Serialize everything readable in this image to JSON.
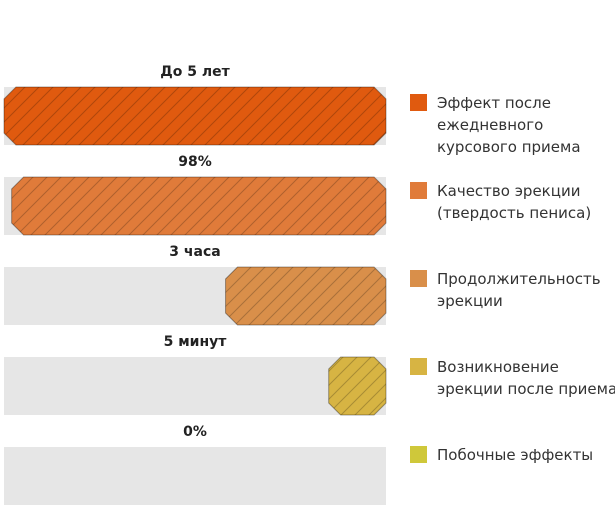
{
  "chart_data": {
    "type": "bar",
    "orientation": "horizontal",
    "track_color": "#e6e6e6",
    "items": [
      {
        "label": "До 5 лет",
        "value": 100,
        "color": "#e05a0f",
        "legend": [
          "Эффект после",
          "ежедневного",
          "курсового приема"
        ]
      },
      {
        "label": "98%",
        "value": 98,
        "color": "#e07b3a",
        "legend": [
          "Качество эрекции",
          "(твердость пениса)"
        ]
      },
      {
        "label": "3 часа",
        "value": 42,
        "color": "#d98f4a",
        "legend": [
          "Продолжительность",
          "эрекции"
        ]
      },
      {
        "label": "5 минут",
        "value": 15,
        "color": "#d7b443",
        "legend": [
          "Возникновение",
          "эрекции после приема"
        ]
      },
      {
        "label": "0%",
        "value": 0,
        "color": "#cfc83a",
        "legend": [
          "Побочные эффекты"
        ]
      }
    ],
    "legend_placement": "right",
    "grid": false
  }
}
